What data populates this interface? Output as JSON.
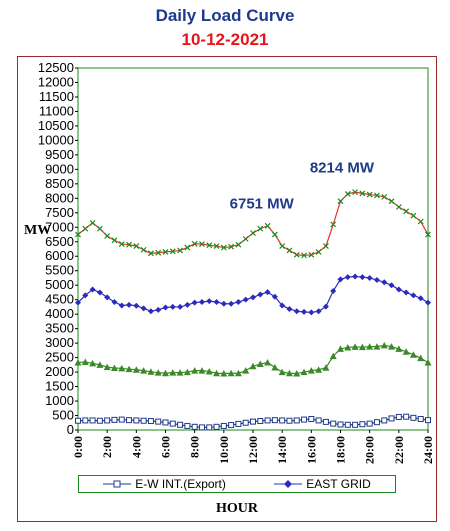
{
  "title": "Daily Load Curve",
  "subtitle": "10-12-2021",
  "chart_data": {
    "type": "line",
    "title": "Daily Load Curve",
    "subtitle": "10-12-2021",
    "xlabel": "HOUR",
    "ylabel": "MW",
    "ylim": [
      0,
      12500
    ],
    "yticks": [
      0,
      500,
      1000,
      1500,
      2000,
      2500,
      3000,
      3500,
      4000,
      4500,
      5000,
      5500,
      6000,
      6500,
      7000,
      7500,
      8000,
      8500,
      9000,
      9500,
      10000,
      10500,
      11000,
      11500,
      12000,
      12500
    ],
    "xlim": [
      0,
      24
    ],
    "xticks": [
      "0:00",
      "2:00",
      "4:00",
      "6:00",
      "8:00",
      "10:00",
      "12:00",
      "14:00",
      "16:00",
      "18:00",
      "20:00",
      "22:00",
      "24:00"
    ],
    "grid": false,
    "legend_position": "bottom",
    "x": [
      0,
      0.5,
      1,
      1.5,
      2,
      2.5,
      3,
      3.5,
      4,
      4.5,
      5,
      5.5,
      6,
      6.5,
      7,
      7.5,
      8,
      8.5,
      9,
      9.5,
      10,
      10.5,
      11,
      11.5,
      12,
      12.5,
      13,
      13.5,
      14,
      14.5,
      15,
      15.5,
      16,
      16.5,
      17,
      17.5,
      18,
      18.5,
      19,
      19.5,
      20,
      20.5,
      21,
      21.5,
      22,
      22.5,
      23,
      23.5,
      24
    ],
    "series": [
      {
        "name": "",
        "color": "#e83030",
        "marker": "x",
        "values": [
          6750,
          6950,
          7150,
          6950,
          6700,
          6550,
          6420,
          6400,
          6350,
          6220,
          6100,
          6120,
          6150,
          6170,
          6200,
          6300,
          6430,
          6420,
          6380,
          6350,
          6300,
          6330,
          6400,
          6600,
          6800,
          6950,
          7050,
          6750,
          6350,
          6200,
          6050,
          6030,
          6050,
          6150,
          6350,
          7100,
          7900,
          8150,
          8214,
          8170,
          8130,
          8100,
          8050,
          7900,
          7700,
          7550,
          7400,
          7200,
          6750
        ]
      },
      {
        "name": "EAST GRID",
        "color": "#2b2bc0",
        "marker": "diamond",
        "values": [
          4400,
          4650,
          4850,
          4750,
          4580,
          4420,
          4300,
          4320,
          4290,
          4200,
          4100,
          4150,
          4230,
          4250,
          4250,
          4320,
          4400,
          4420,
          4450,
          4420,
          4360,
          4360,
          4420,
          4500,
          4580,
          4680,
          4760,
          4600,
          4300,
          4180,
          4100,
          4080,
          4060,
          4100,
          4260,
          4800,
          5200,
          5280,
          5300,
          5280,
          5250,
          5180,
          5100,
          5000,
          4850,
          4750,
          4650,
          4550,
          4400
        ]
      },
      {
        "name": "",
        "color": "#3a8a2a",
        "marker": "triangle",
        "values": [
          2330,
          2350,
          2300,
          2250,
          2170,
          2140,
          2130,
          2100,
          2080,
          2050,
          2010,
          1980,
          1960,
          1980,
          1980,
          2000,
          2050,
          2050,
          2020,
          1960,
          1950,
          1960,
          1960,
          2050,
          2200,
          2280,
          2330,
          2160,
          2000,
          1960,
          1950,
          2000,
          2050,
          2080,
          2150,
          2550,
          2800,
          2850,
          2870,
          2860,
          2880,
          2880,
          2920,
          2880,
          2800,
          2700,
          2600,
          2480,
          2330
        ]
      },
      {
        "name": "E-W INT.(Export)",
        "color": "#1f3a8c",
        "marker": "square",
        "values": [
          320,
          330,
          330,
          320,
          330,
          350,
          360,
          340,
          330,
          320,
          310,
          290,
          260,
          220,
          180,
          140,
          110,
          90,
          90,
          110,
          140,
          170,
          210,
          250,
          290,
          310,
          330,
          340,
          330,
          320,
          330,
          360,
          380,
          330,
          280,
          220,
          190,
          180,
          180,
          200,
          220,
          270,
          330,
          400,
          450,
          460,
          420,
          380,
          340
        ]
      }
    ],
    "annotations": [
      {
        "text": "6751 MW",
        "x": 12.6,
        "y": 7650
      },
      {
        "text": "8214 MW",
        "x": 18.1,
        "y": 8900
      }
    ]
  },
  "legend": {
    "items": [
      {
        "label": "E-W INT.(Export)",
        "color": "#1f3a8c",
        "marker": "square"
      },
      {
        "label": "EAST GRID",
        "color": "#2b2bc0",
        "marker": "diamond"
      }
    ]
  }
}
